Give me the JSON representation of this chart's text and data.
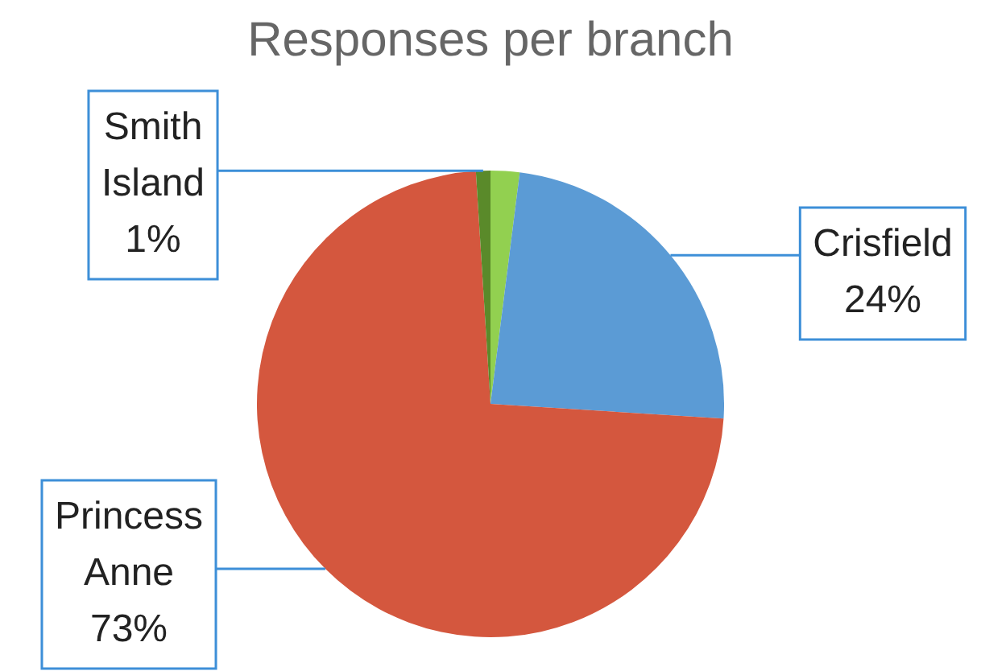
{
  "chart_data": {
    "type": "pie",
    "title": "Responses per branch",
    "categories": [
      null,
      "Crisfield",
      "Princess Anne",
      "Smith Island"
    ],
    "values": [
      2,
      24,
      73,
      1
    ],
    "colors": [
      "#92d050",
      "#5b9bd5",
      "#d4573e",
      "#5a8a2a"
    ],
    "value_labels": [
      null,
      "24%",
      "73%",
      "1%"
    ],
    "legend": false
  }
}
